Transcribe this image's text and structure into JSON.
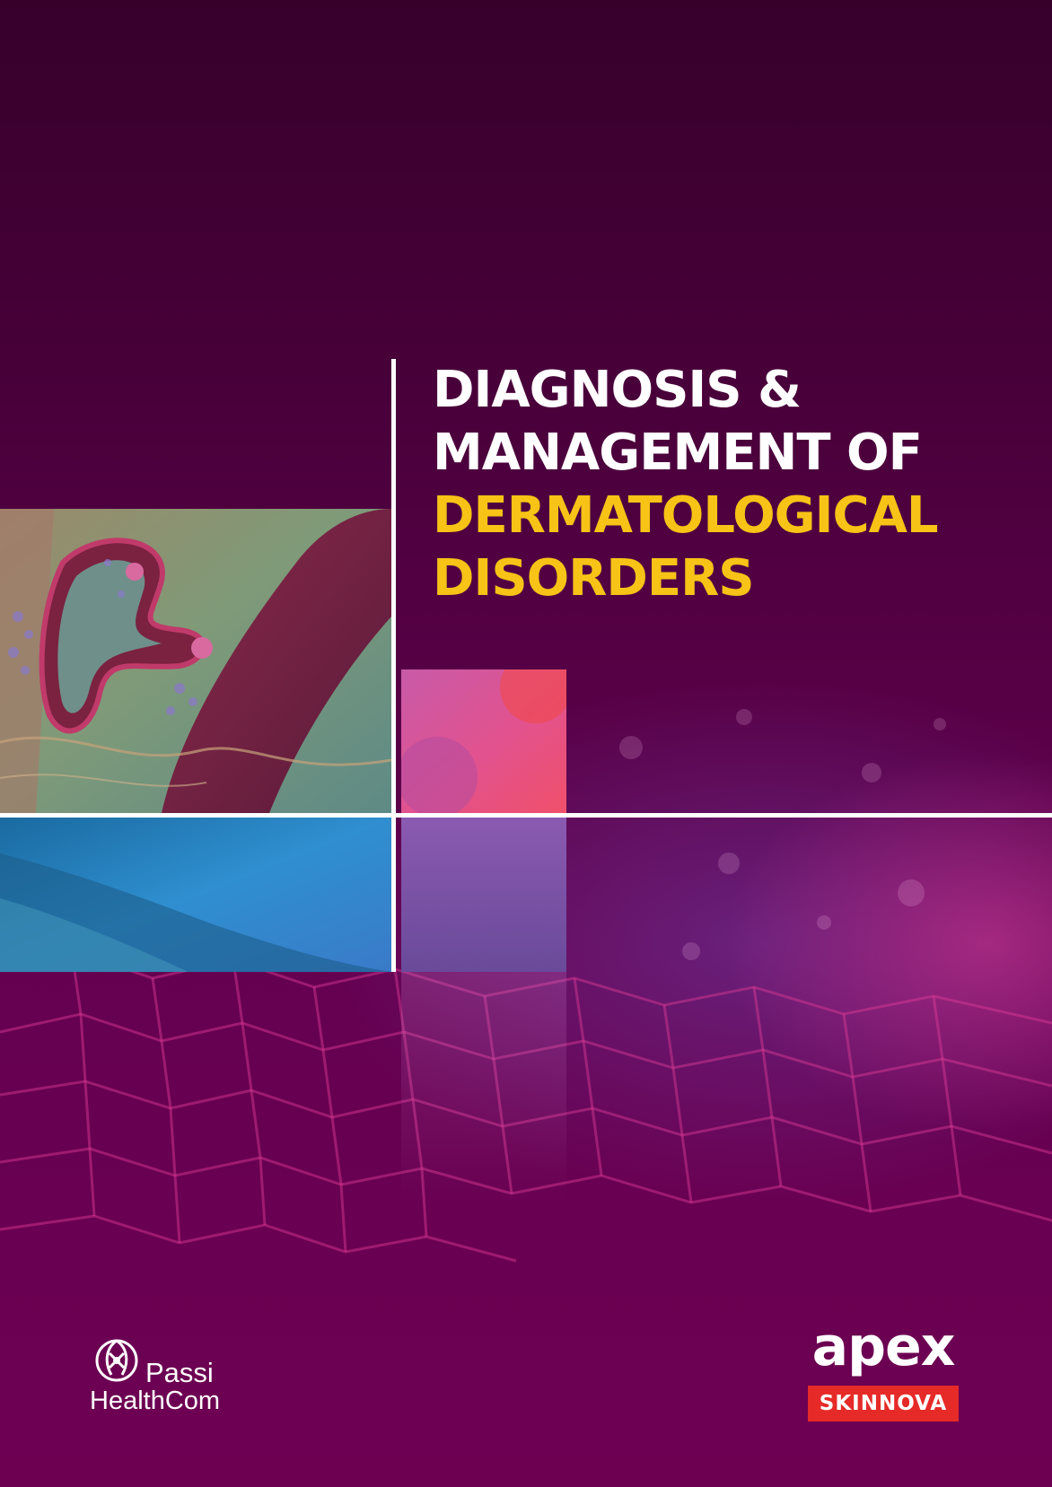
{
  "cover": {
    "title_lines": [
      "DIAGNOSIS &",
      "MANAGEMENT OF",
      "DERMATOLOGICAL",
      "DISORDERS"
    ],
    "colors": {
      "background_top": "#37002b",
      "background_bottom": "#6e0052",
      "title_white": "#ffffff",
      "title_yellow": "#f7c316",
      "badge_red": "#e52a28"
    }
  },
  "publisher": {
    "name": "Passi",
    "subname": "HealthCom",
    "icon": "passi-healthcom-mark-icon"
  },
  "brand": {
    "name": "apex",
    "tagline": "SKINNOVA"
  }
}
